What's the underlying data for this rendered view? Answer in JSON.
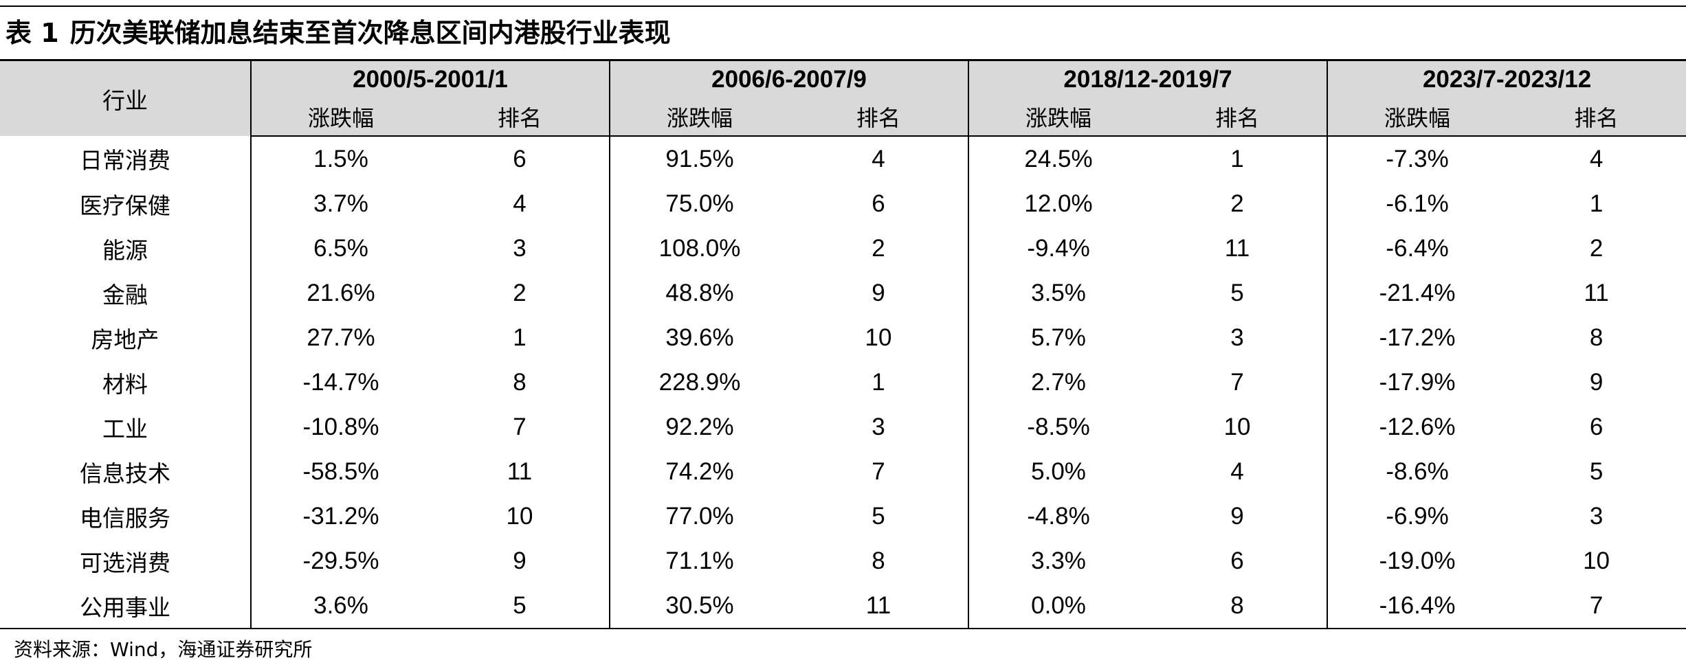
{
  "title": {
    "prefix": "表 1",
    "text": "历次美联储加息结束至首次降息区间内港股行业表现"
  },
  "table": {
    "industry_header": "行业",
    "periods": [
      "2000/5-2001/1",
      "2006/6-2007/9",
      "2018/12-2019/7",
      "2023/7-2023/12"
    ],
    "sub_headers": {
      "change": "涨跌幅",
      "rank": "排名"
    },
    "rows": [
      {
        "industry": "日常消费",
        "cells": [
          "1.5%",
          "6",
          "91.5%",
          "4",
          "24.5%",
          "1",
          "-7.3%",
          "4"
        ]
      },
      {
        "industry": "医疗保健",
        "cells": [
          "3.7%",
          "4",
          "75.0%",
          "6",
          "12.0%",
          "2",
          "-6.1%",
          "1"
        ]
      },
      {
        "industry": "能源",
        "cells": [
          "6.5%",
          "3",
          "108.0%",
          "2",
          "-9.4%",
          "11",
          "-6.4%",
          "2"
        ]
      },
      {
        "industry": "金融",
        "cells": [
          "21.6%",
          "2",
          "48.8%",
          "9",
          "3.5%",
          "5",
          "-21.4%",
          "11"
        ]
      },
      {
        "industry": "房地产",
        "cells": [
          "27.7%",
          "1",
          "39.6%",
          "10",
          "5.7%",
          "3",
          "-17.2%",
          "8"
        ]
      },
      {
        "industry": "材料",
        "cells": [
          "-14.7%",
          "8",
          "228.9%",
          "1",
          "2.7%",
          "7",
          "-17.9%",
          "9"
        ]
      },
      {
        "industry": "工业",
        "cells": [
          "-10.8%",
          "7",
          "92.2%",
          "3",
          "-8.5%",
          "10",
          "-12.6%",
          "6"
        ]
      },
      {
        "industry": "信息技术",
        "cells": [
          "-58.5%",
          "11",
          "74.2%",
          "7",
          "5.0%",
          "4",
          "-8.6%",
          "5"
        ]
      },
      {
        "industry": "电信服务",
        "cells": [
          "-31.2%",
          "10",
          "77.0%",
          "5",
          "-4.8%",
          "9",
          "-6.9%",
          "3"
        ]
      },
      {
        "industry": "可选消费",
        "cells": [
          "-29.5%",
          "9",
          "71.1%",
          "8",
          "3.3%",
          "6",
          "-19.0%",
          "10"
        ]
      },
      {
        "industry": "公用事业",
        "cells": [
          "3.6%",
          "5",
          "30.5%",
          "11",
          "0.0%",
          "8",
          "-16.4%",
          "7"
        ]
      }
    ]
  },
  "source": "资料来源：Wind，海通证券研究所",
  "colors": {
    "header_background": "#d9d9d9",
    "rule": "#000000"
  }
}
